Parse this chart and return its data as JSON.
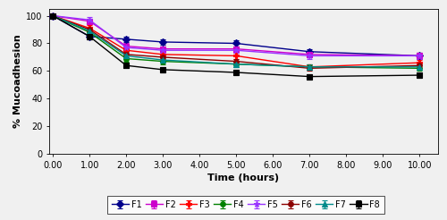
{
  "time": [
    0.0,
    1.0,
    2.0,
    3.0,
    5.0,
    7.0,
    10.0
  ],
  "series": {
    "F1": {
      "values": [
        100,
        85,
        83,
        81,
        80,
        74,
        71
      ],
      "yerr": [
        0,
        2,
        2,
        2,
        2,
        2,
        2
      ],
      "color": "#00008B",
      "marker": "D",
      "label": "F1",
      "markersize": 4
    },
    "F2": {
      "values": [
        100,
        96,
        78,
        76,
        76,
        72,
        71
      ],
      "yerr": [
        0,
        2,
        2,
        2,
        2,
        2,
        2
      ],
      "color": "#CC00CC",
      "marker": "s",
      "label": "F2",
      "markersize": 4
    },
    "F3": {
      "values": [
        100,
        91,
        75,
        72,
        71,
        63,
        66
      ],
      "yerr": [
        0,
        2,
        2,
        2,
        2,
        2,
        2
      ],
      "color": "#FF0000",
      "marker": "P",
      "label": "F3",
      "markersize": 4
    },
    "F4": {
      "values": [
        100,
        88,
        69,
        67,
        65,
        63,
        62
      ],
      "yerr": [
        0,
        2,
        2,
        2,
        2,
        2,
        2
      ],
      "color": "#008000",
      "marker": "o",
      "label": "F4",
      "markersize": 4
    },
    "F5": {
      "values": [
        100,
        97,
        77,
        75,
        75,
        71,
        71
      ],
      "yerr": [
        0,
        2,
        2,
        2,
        2,
        2,
        2
      ],
      "color": "#9933FF",
      "marker": "*",
      "label": "F5",
      "markersize": 5
    },
    "F6": {
      "values": [
        100,
        90,
        72,
        70,
        67,
        62,
        64
      ],
      "yerr": [
        0,
        2,
        2,
        2,
        2,
        2,
        2
      ],
      "color": "#8B0000",
      "marker": "o",
      "label": "F6",
      "markersize": 4
    },
    "F7": {
      "values": [
        100,
        89,
        71,
        68,
        65,
        63,
        63
      ],
      "yerr": [
        0,
        2,
        2,
        2,
        2,
        2,
        2
      ],
      "color": "#008B8B",
      "marker": "^",
      "label": "F7",
      "markersize": 4
    },
    "F8": {
      "values": [
        100,
        85,
        64,
        61,
        59,
        56,
        57
      ],
      "yerr": [
        0,
        2,
        2,
        2,
        2,
        2,
        2
      ],
      "color": "#000000",
      "marker": "s",
      "label": "F8",
      "markersize": 4
    }
  },
  "xlabel": "Time (hours)",
  "ylabel": "% Mucoadhesion",
  "xlim": [
    -0.1,
    10.5
  ],
  "ylim": [
    0,
    105
  ],
  "xticks": [
    0.0,
    1.0,
    2.0,
    3.0,
    4.0,
    5.0,
    6.0,
    7.0,
    8.0,
    9.0,
    10.0
  ],
  "yticks": [
    0,
    20,
    40,
    60,
    80,
    100
  ],
  "legend_order": [
    "F1",
    "F2",
    "F3",
    "F4",
    "F5",
    "F6",
    "F7",
    "F8"
  ],
  "bg_color": "#f0f0f0"
}
